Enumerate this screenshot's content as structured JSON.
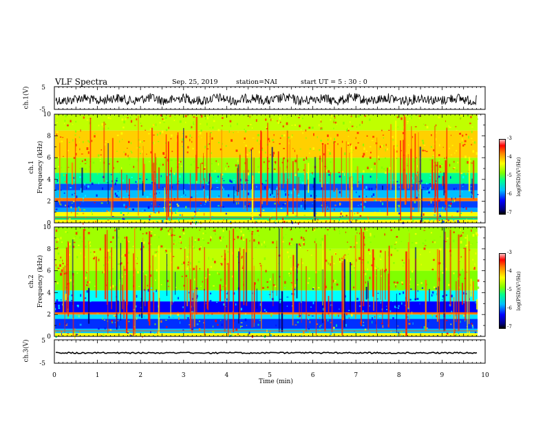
{
  "header": {
    "title": "VLF Spectra",
    "date": "Sep. 25, 2019",
    "station": "station=NAI",
    "start": "start  UT =   5 : 30 : 0"
  },
  "colors": {
    "scale": [
      "#000000",
      "#000080",
      "#0000ff",
      "#00bfff",
      "#00ff90",
      "#7fff00",
      "#ffff00",
      "#ff8000",
      "#ff0000",
      "#ffc0c0"
    ]
  },
  "chart_data": [
    {
      "type": "line",
      "panel": "ch1-waveform",
      "ylabel": "ch.1(V)",
      "ylim": [
        -5,
        5
      ],
      "yticks": [
        "5",
        "-5"
      ],
      "xlim": [
        0,
        10
      ]
    },
    {
      "type": "heatmap",
      "panel": "ch1-spectrogram",
      "ylabel": "ch.1\nFrequency (kHz)",
      "ylabel_line1": "ch.1",
      "ylabel_line2": "Frequency  (kHz)",
      "ylim": [
        0,
        10
      ],
      "yticks": [
        "0",
        "2",
        "4",
        "6",
        "8",
        "10"
      ],
      "xlim": [
        0,
        10
      ],
      "colorbar": {
        "label": "log(PSD)(V²/Hz)",
        "ticks": [
          "-3",
          "-4",
          "-5",
          "-6",
          "-7"
        ],
        "range": [
          -7,
          -3
        ]
      }
    },
    {
      "type": "heatmap",
      "panel": "ch2-spectrogram",
      "ylabel_line1": "ch.2",
      "ylabel_line2": "Frequency  (kHz)",
      "ylim": [
        0,
        10
      ],
      "yticks": [
        "0",
        "2",
        "4",
        "6",
        "8",
        "10"
      ],
      "xlim": [
        0,
        10
      ],
      "colorbar": {
        "label": "log(PSD)(V²/Hz)",
        "ticks": [
          "-3",
          "-4",
          "-5",
          "-6",
          "-7"
        ],
        "range": [
          -7,
          -3
        ]
      }
    },
    {
      "type": "line",
      "panel": "ch3-waveform",
      "ylabel": "ch.3(V)",
      "ylim": [
        -5,
        5
      ],
      "yticks": [
        "5",
        "-5"
      ],
      "xlim": [
        0,
        10
      ]
    }
  ],
  "xaxis": {
    "label": "Time  (min)",
    "ticks": [
      "0",
      "1",
      "2",
      "3",
      "4",
      "5",
      "6",
      "7",
      "8",
      "9",
      "10"
    ]
  }
}
